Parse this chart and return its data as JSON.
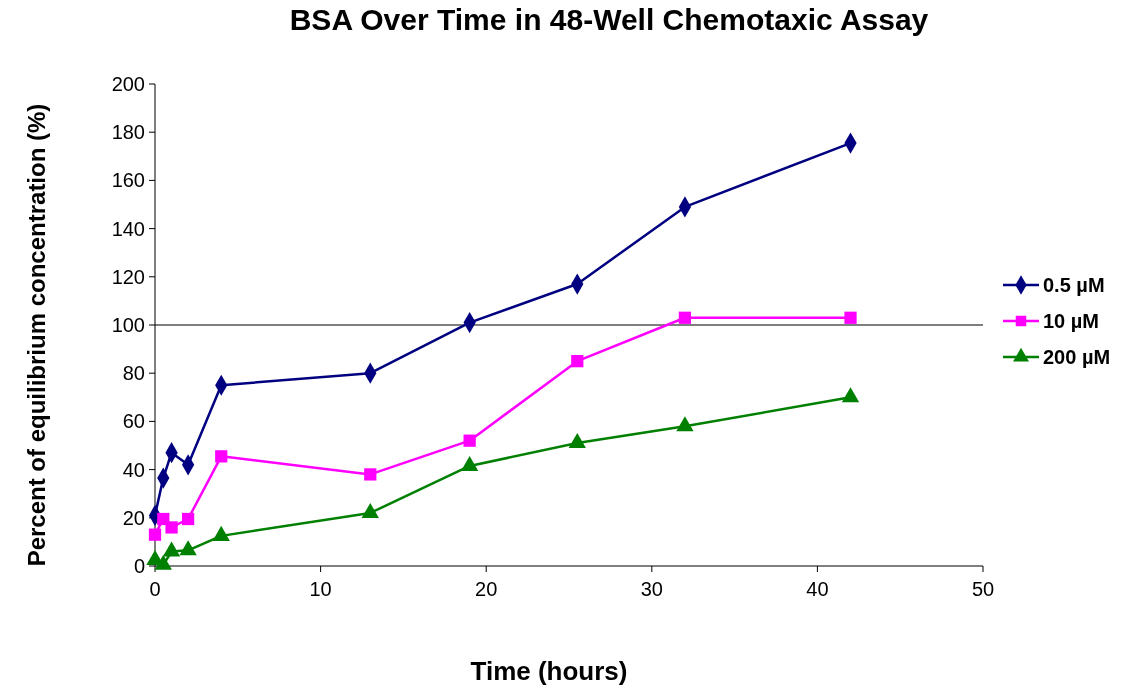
{
  "chart_data": {
    "type": "line",
    "title": "BSA Over Time in 48-Well Chemotaxic Assay",
    "xlabel": "Time (hours)",
    "ylabel": "Percent of equilibrium concentration (%)",
    "x": [
      0,
      0.5,
      1,
      2,
      4,
      13,
      19,
      25.5,
      32,
      42
    ],
    "series": [
      {
        "name": "0.5 µM",
        "color": "#000080",
        "marker": "diamond",
        "values": [
          21,
          36.5,
          47,
          42,
          75,
          80,
          101,
          117,
          149,
          175.5
        ]
      },
      {
        "name": "10 µM",
        "color": "#ff00ff",
        "marker": "square",
        "values": [
          13,
          19.5,
          16,
          19.5,
          45.5,
          38,
          52,
          85,
          103,
          103
        ]
      },
      {
        "name": "200 µM",
        "color": "#008000",
        "marker": "triangle",
        "values": [
          2.5,
          0.5,
          6,
          6.5,
          12.5,
          22,
          41.5,
          51,
          58,
          70
        ]
      }
    ],
    "xlim": [
      0,
      50
    ],
    "xticks": [
      0,
      10,
      20,
      30,
      40,
      50
    ],
    "ylim": [
      0,
      200
    ],
    "yticks": [
      0,
      20,
      40,
      60,
      80,
      100,
      120,
      140,
      160,
      180,
      200
    ],
    "ref_lines": [
      {
        "axis": "y",
        "value": 100,
        "color": "#000000"
      }
    ],
    "legend": "right",
    "grid": false
  }
}
